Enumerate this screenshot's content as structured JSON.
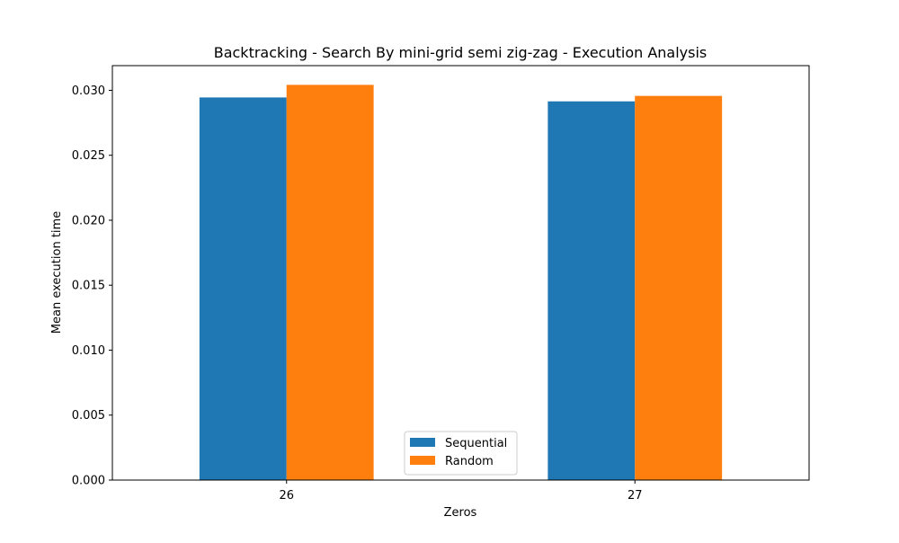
{
  "chart_data": {
    "type": "bar",
    "title": "Backtracking - Search By mini-grid semi zig-zag - Execution Analysis",
    "xlabel": "Zeros",
    "ylabel": "Mean execution time",
    "categories": [
      "26",
      "27"
    ],
    "series": [
      {
        "name": "Sequential",
        "color": "#1f77b4",
        "values": [
          0.02945,
          0.02915
        ]
      },
      {
        "name": "Random",
        "color": "#ff7f0e",
        "values": [
          0.03042,
          0.02957
        ]
      }
    ],
    "ylim": [
      0,
      0.0319
    ],
    "yticks": [
      0.0,
      0.005,
      0.01,
      0.015,
      0.02,
      0.025,
      0.03
    ],
    "ytick_labels": [
      "0.000",
      "0.005",
      "0.010",
      "0.015",
      "0.020",
      "0.025",
      "0.030"
    ],
    "grid": false,
    "legend_position": "lower-center"
  }
}
